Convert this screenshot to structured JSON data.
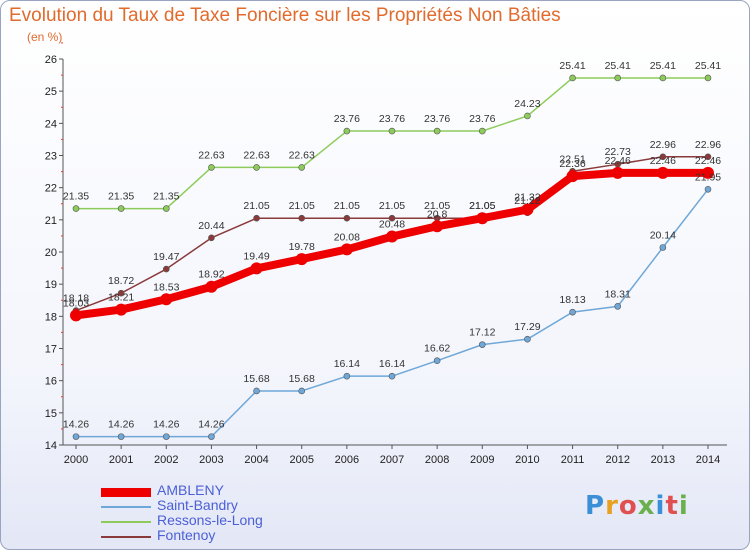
{
  "title": "Evolution du Taux de Taxe Foncière sur les Propriétés Non Bâties",
  "unit_label": "(en %)",
  "logo_text": "Proxiti",
  "chart_data": {
    "type": "line",
    "x": [
      "2000",
      "2001",
      "2002",
      "2003",
      "2004",
      "2005",
      "2006",
      "2007",
      "2008",
      "2009",
      "2010",
      "2011",
      "2012",
      "2013",
      "2014"
    ],
    "ylim": [
      14,
      26
    ],
    "yticks": [
      14,
      15,
      16,
      17,
      18,
      19,
      20,
      21,
      22,
      23,
      24,
      25,
      26
    ],
    "grid": false,
    "legend_position": "bottom-left",
    "series": [
      {
        "name": "AMBLENY",
        "color": "#ee0000",
        "values": [
          18.03,
          18.21,
          18.53,
          18.92,
          19.49,
          19.78,
          20.08,
          20.48,
          20.8,
          21.05,
          21.32,
          22.36,
          22.46,
          22.46,
          22.46
        ],
        "labels": [
          "18.03",
          "18.21",
          "18.53",
          "18.92",
          "19.49",
          "19.78",
          "20.08",
          "20.48",
          "20.8",
          "21.05",
          "21.32",
          "22.36",
          "22.46",
          "22.46",
          "22.46"
        ]
      },
      {
        "name": "Saint-Bandry",
        "color": "#6ea7d8",
        "values": [
          14.26,
          14.26,
          14.26,
          14.26,
          15.68,
          15.68,
          16.14,
          16.14,
          16.62,
          17.12,
          17.29,
          18.13,
          18.31,
          20.14,
          21.95
        ],
        "labels": [
          "14.26",
          "14.26",
          "14.26",
          "14.26",
          "15.68",
          "15.68",
          "16.14",
          "16.14",
          "16.62",
          "17.12",
          "17.29",
          "18.13",
          "18.31",
          "20.14",
          "21.95"
        ]
      },
      {
        "name": "Ressons-le-Long",
        "color": "#8dcc5a",
        "values": [
          21.35,
          21.35,
          21.35,
          22.63,
          22.63,
          22.63,
          23.76,
          23.76,
          23.76,
          23.76,
          24.23,
          25.41,
          25.41,
          25.41,
          25.41
        ],
        "labels": [
          "21.35",
          "21.35",
          "21.35",
          "22.63",
          "22.63",
          "22.63",
          "23.76",
          "23.76",
          "23.76",
          "23.76",
          "24.23",
          "25.41",
          "25.41",
          "25.41",
          "25.41"
        ]
      },
      {
        "name": "Fontenoy",
        "color": "#8a3a3a",
        "values": [
          18.18,
          18.72,
          19.47,
          20.44,
          21.05,
          21.05,
          21.05,
          21.05,
          21.05,
          21.05,
          21.22,
          22.51,
          22.73,
          22.96,
          22.96
        ],
        "labels": [
          "18.18",
          "18.72",
          "19.47",
          "20.44",
          "21.05",
          "21.05",
          "21.05",
          "21.05",
          "21.05",
          "21.05",
          "21.22",
          "22.51",
          "22.73",
          "22.96",
          "22.96"
        ]
      }
    ]
  }
}
